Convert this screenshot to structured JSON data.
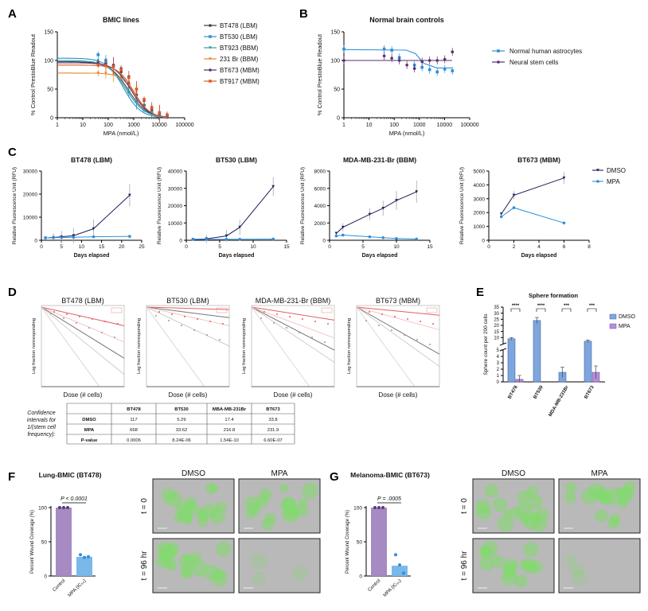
{
  "panels": {
    "A": "A",
    "B": "B",
    "C": "C",
    "D": "D",
    "E": "E",
    "F": "F",
    "G": "G"
  },
  "colors": {
    "BT478": "#3c3c4c",
    "BT530": "#2f8fd8",
    "BT923": "#2aa198",
    "231Br": "#e8892a",
    "BT673": "#5a2f6e",
    "BT917": "#e05a2a",
    "astro": "#2f8fd8",
    "nsc": "#5a2f6e",
    "dmso": "#1e1e5a",
    "mpa": "#2f8fd8",
    "bar_dmso": "#7fa6dc",
    "bar_mpa": "#b48ed6",
    "wound_control": "#a58bc2",
    "wound_mpa": "#7ab8ea"
  },
  "chart_data": [
    {
      "id": "A",
      "type": "line",
      "title": "BMIC lines",
      "xlabel": "MPA (nmol/L)",
      "ylabel": "% Control PrestoBlue Readout",
      "xscale": "log",
      "xlim": [
        1,
        100000
      ],
      "ylim": [
        0,
        150
      ],
      "xticks": [
        "1",
        "10",
        "100",
        "1000",
        "10000",
        "100000"
      ],
      "yticks": [
        "0",
        "50",
        "100",
        "150"
      ],
      "x": [
        40,
        80,
        160,
        320,
        640,
        1280,
        2560,
        5120,
        10240,
        20480
      ],
      "series": [
        {
          "name": "BT478 (LBM)",
          "top": 98,
          "ic50": 600,
          "hill": 1.2,
          "values": [
            97,
            95,
            90,
            80,
            60,
            40,
            22,
            12,
            6,
            4
          ]
        },
        {
          "name": "BT530 (LBM)",
          "top": 104,
          "ic50": 400,
          "hill": 1.3,
          "values": [
            110,
            100,
            90,
            70,
            45,
            28,
            14,
            8,
            5,
            3
          ]
        },
        {
          "name": "BT923 (BBM)",
          "top": 100,
          "ic50": 500,
          "hill": 1.2,
          "values": [
            100,
            96,
            88,
            72,
            52,
            32,
            18,
            10,
            6,
            4
          ]
        },
        {
          "name": "231 Br (BBM)",
          "top": 78,
          "ic50": 1200,
          "hill": 1.5,
          "values": [
            78,
            78,
            76,
            72,
            62,
            44,
            28,
            16,
            8,
            5
          ]
        },
        {
          "name": "BT673 (MBM)",
          "top": 96,
          "ic50": 800,
          "hill": 1.3,
          "values": [
            95,
            94,
            92,
            86,
            72,
            50,
            30,
            16,
            8,
            4
          ]
        },
        {
          "name": "BT917 (MBM)",
          "top": 92,
          "ic50": 1000,
          "hill": 1.4,
          "values": [
            92,
            91,
            89,
            84,
            70,
            50,
            32,
            18,
            9,
            5
          ]
        }
      ]
    },
    {
      "id": "B",
      "type": "line",
      "title": "Normal brain controls",
      "xlabel": "MPA (nmol/L)",
      "ylabel": "% Control PrestoBlue Readout",
      "xscale": "log",
      "xlim": [
        1,
        100000
      ],
      "ylim": [
        0,
        150
      ],
      "xticks": [
        "1",
        "10",
        "100",
        "1000",
        "10000",
        "100000"
      ],
      "yticks": [
        "0",
        "50",
        "100",
        "150"
      ],
      "series": [
        {
          "name": "Normal human astrocytes",
          "x": [
            1,
            40,
            80,
            160,
            640,
            1280,
            2560,
            5120,
            10240,
            20480
          ],
          "values": [
            120,
            120,
            118,
            105,
            92,
            88,
            84,
            80,
            85,
            82
          ],
          "fit": [
            [
              1,
              119
            ],
            [
              300,
              118
            ],
            [
              700,
              112
            ],
            [
              1500,
              95
            ],
            [
              5000,
              87
            ],
            [
              20000,
              87
            ]
          ]
        },
        {
          "name": "Neural stem cells",
          "x": [
            1,
            40,
            80,
            160,
            320,
            640,
            1280,
            2560,
            5120,
            10240,
            20480
          ],
          "values": [
            100,
            108,
            104,
            100,
            92,
            86,
            98,
            100,
            100,
            102,
            115
          ],
          "fit": [
            [
              1,
              100
            ],
            [
              20000,
              100
            ]
          ]
        }
      ]
    },
    {
      "id": "C1",
      "type": "line",
      "title": "BT478 (LBM)",
      "xlabel": "Days elapsed",
      "ylabel": "Relative Fluorescence Unit (RFU)",
      "xlim": [
        0,
        25
      ],
      "ylim": [
        0,
        30000
      ],
      "xticks": [
        "0",
        "5",
        "10",
        "15",
        "20",
        "25"
      ],
      "yticks": [
        "0",
        "10000",
        "20000",
        "30000"
      ],
      "series": [
        {
          "name": "DMSO",
          "x": [
            1,
            3,
            5,
            8,
            13,
            22
          ],
          "values": [
            1000,
            1200,
            1500,
            2000,
            5000,
            19500
          ]
        },
        {
          "name": "MPA",
          "x": [
            1,
            3,
            5,
            8,
            13,
            22
          ],
          "values": [
            1000,
            1100,
            1200,
            1300,
            1500,
            1700
          ]
        }
      ]
    },
    {
      "id": "C2",
      "type": "line",
      "title": "BT530 (LBM)",
      "xlabel": "Days elapsed",
      "ylabel": "Relative Fluorescence Unit (RFU)",
      "xlim": [
        0,
        15
      ],
      "ylim": [
        0,
        40000
      ],
      "xticks": [
        "0",
        "5",
        "10",
        "15"
      ],
      "yticks": [
        "0",
        "10000",
        "20000",
        "30000",
        "40000"
      ],
      "series": [
        {
          "name": "DMSO",
          "x": [
            1,
            3,
            6,
            8,
            13
          ],
          "values": [
            500,
            800,
            2500,
            7500,
            31000
          ]
        },
        {
          "name": "MPA",
          "x": [
            1,
            3,
            6,
            8,
            13
          ],
          "values": [
            500,
            500,
            600,
            600,
            700
          ]
        }
      ]
    },
    {
      "id": "C3",
      "type": "line",
      "title": "MDA-MB-231-Br (BBM)",
      "xlabel": "Days elapsed",
      "ylabel": "Relative Fluorescence Unit (RFU)",
      "xlim": [
        0,
        15
      ],
      "ylim": [
        0,
        8000
      ],
      "xticks": [
        "0",
        "5",
        "10",
        "15"
      ],
      "yticks": [
        "0",
        "2000",
        "4000",
        "6000",
        "8000"
      ],
      "series": [
        {
          "name": "DMSO",
          "x": [
            1,
            2,
            6,
            8,
            10,
            13
          ],
          "values": [
            800,
            1500,
            3000,
            3700,
            4600,
            5600
          ]
        },
        {
          "name": "MPA",
          "x": [
            1,
            2,
            6,
            8,
            10,
            13
          ],
          "values": [
            500,
            600,
            400,
            300,
            200,
            150
          ]
        }
      ]
    },
    {
      "id": "C4",
      "type": "line",
      "title": "BT673 (MBM)",
      "xlabel": "Days elapsed",
      "ylabel": "Relative Fluorescence Unit (RFU)",
      "xlim": [
        0,
        8
      ],
      "ylim": [
        0,
        5000
      ],
      "xticks": [
        "0",
        "2",
        "4",
        "6",
        "8"
      ],
      "yticks": [
        "0",
        "1000",
        "2000",
        "3000",
        "4000",
        "5000"
      ],
      "series": [
        {
          "name": "DMSO",
          "x": [
            1,
            2,
            6
          ],
          "values": [
            1900,
            3250,
            4500
          ]
        },
        {
          "name": "MPA",
          "x": [
            1,
            2,
            6
          ],
          "values": [
            1700,
            2350,
            1250
          ]
        }
      ]
    },
    {
      "id": "E",
      "type": "bar",
      "title": "Sphere formation",
      "ylabel": "Sphere count per 200 cells",
      "categories": [
        "BT478",
        "BT530",
        "MDA-MB-231Br",
        "BT673"
      ],
      "yticks": [
        "0",
        "1",
        "2",
        "3",
        "4",
        "5",
        "10",
        "15",
        "20",
        "25",
        "30",
        "35"
      ],
      "series": [
        {
          "name": "DMSO",
          "values": [
            9,
            24,
            1.5,
            7
          ],
          "errors": [
            1,
            2.5,
            0.8,
            1
          ]
        },
        {
          "name": "MPA",
          "values": [
            0.4,
            0,
            0,
            1.5
          ],
          "errors": [
            0.6,
            0,
            0,
            1
          ]
        }
      ],
      "significance": [
        "****",
        "****",
        "***",
        "***"
      ]
    },
    {
      "id": "F",
      "type": "bar",
      "title": "Lung-BMIC (BT478)",
      "ylabel": "Percent Wound Coverage (%)",
      "categories": [
        "Control",
        "MPA (IC₅₀)"
      ],
      "values": [
        100,
        28
      ],
      "points": [
        [
          100,
          100,
          100
        ],
        [
          30,
          26,
          27
        ]
      ],
      "ylim": [
        0,
        100
      ],
      "yticks": [
        "0",
        "50",
        "100"
      ],
      "pvalue": "P < 0.0001"
    },
    {
      "id": "G",
      "type": "bar",
      "title": "Melanoma-BMIC (BT673)",
      "ylabel": "Percent Wound Coverage (%)",
      "categories": [
        "Control",
        "MPA (IC₅₀)"
      ],
      "values": [
        100,
        15
      ],
      "points": [
        [
          100,
          100,
          100
        ],
        [
          30,
          15,
          3
        ]
      ],
      "ylim": [
        0,
        100
      ],
      "yticks": [
        "0",
        "50",
        "100"
      ],
      "pvalue": "P = .0005"
    }
  ],
  "legend_C": [
    "DMSO",
    "MPA"
  ],
  "panelD": {
    "titles": [
      "BT478 (LBM)",
      "BT530 (LBM)",
      "MDA-MB-231-Br (BBM)",
      "BT673 (MBM)"
    ],
    "xlabel": "Dose (# cells)",
    "ylabel": "Log fraction nonresponding",
    "table_caption": [
      "Confidence",
      "intervals for",
      "1/(stem cell",
      "frequency):"
    ],
    "table_header": [
      "",
      "BT478",
      "BT530",
      "MBA-MB-231Br",
      "BT673"
    ],
    "table_rows": [
      [
        "DMSO",
        "117",
        "5.29",
        "17.4",
        "33.8"
      ],
      [
        "MPA",
        "668",
        "33.62",
        "216.8",
        "231.9"
      ],
      [
        "P-value",
        "0.0006",
        "8.24E-06",
        "1.54E-10",
        "6.60E-07"
      ]
    ]
  },
  "micrographs": {
    "dmso": "DMSO",
    "mpa": "MPA",
    "t0": "t = 0",
    "t96": "t = 96 hr"
  }
}
